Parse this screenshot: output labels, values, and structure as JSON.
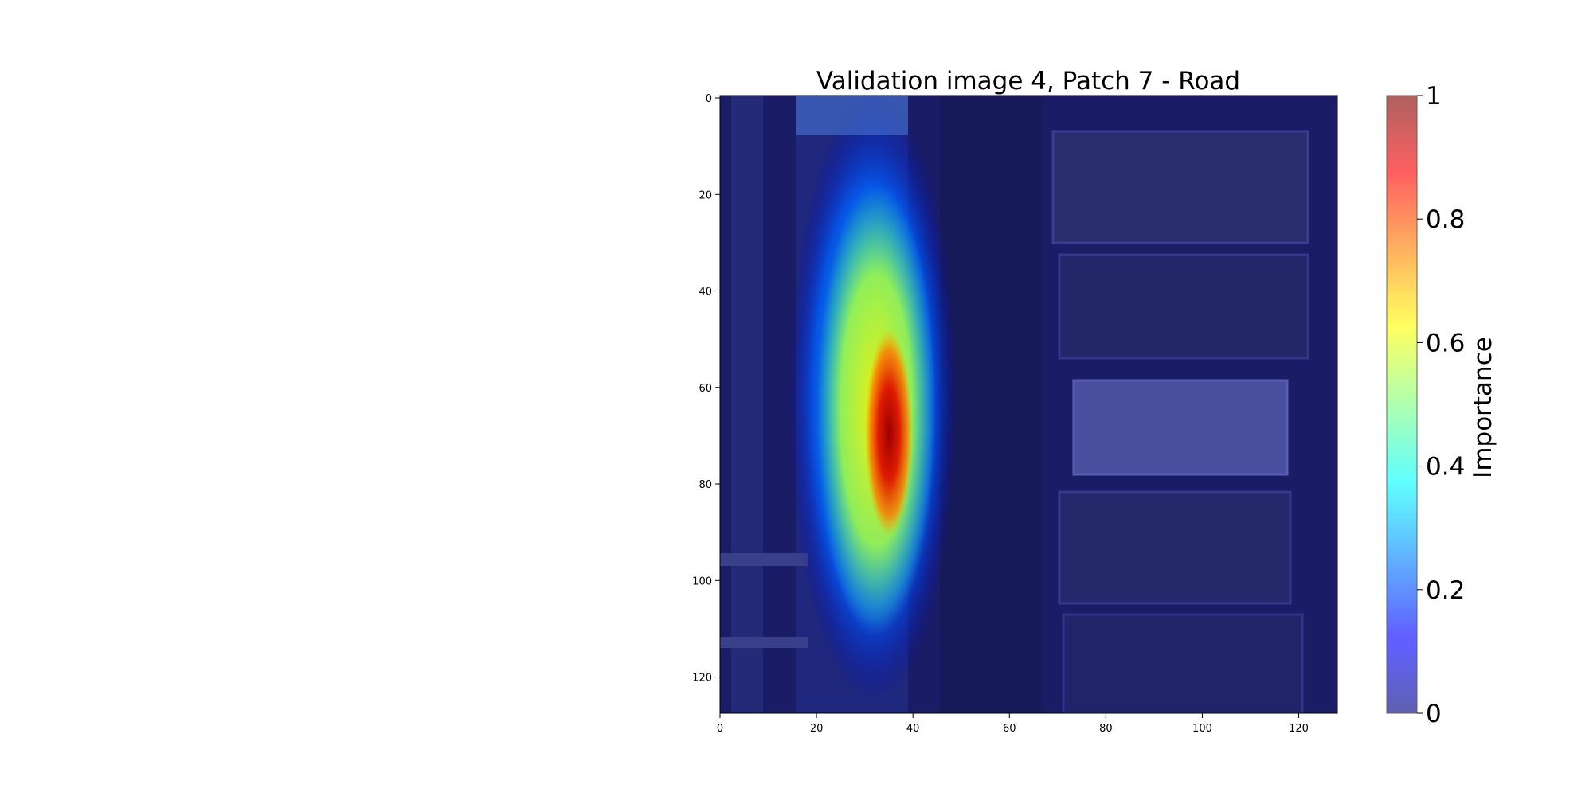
{
  "chart_data": {
    "type": "heatmap",
    "title": "Validation image 4, Patch 7 - Road",
    "x_ticks": [
      "0",
      "20",
      "40",
      "60",
      "80",
      "100",
      "120"
    ],
    "y_ticks": [
      "0",
      "20",
      "40",
      "60",
      "80",
      "100",
      "120"
    ],
    "x_range": [
      0,
      128
    ],
    "y_range": [
      0,
      128
    ],
    "colorbar": {
      "label": "Importance",
      "ticks": [
        "0",
        "0.2",
        "0.4",
        "0.6",
        "0.8",
        "1"
      ],
      "range": [
        0,
        1
      ],
      "colormap": "jet"
    },
    "hotspot": {
      "center_x": 35,
      "center_y": 70,
      "peak_importance": 1.0,
      "description_x_span": [
        18,
        44
      ],
      "description_y_span": [
        5,
        125
      ]
    }
  }
}
